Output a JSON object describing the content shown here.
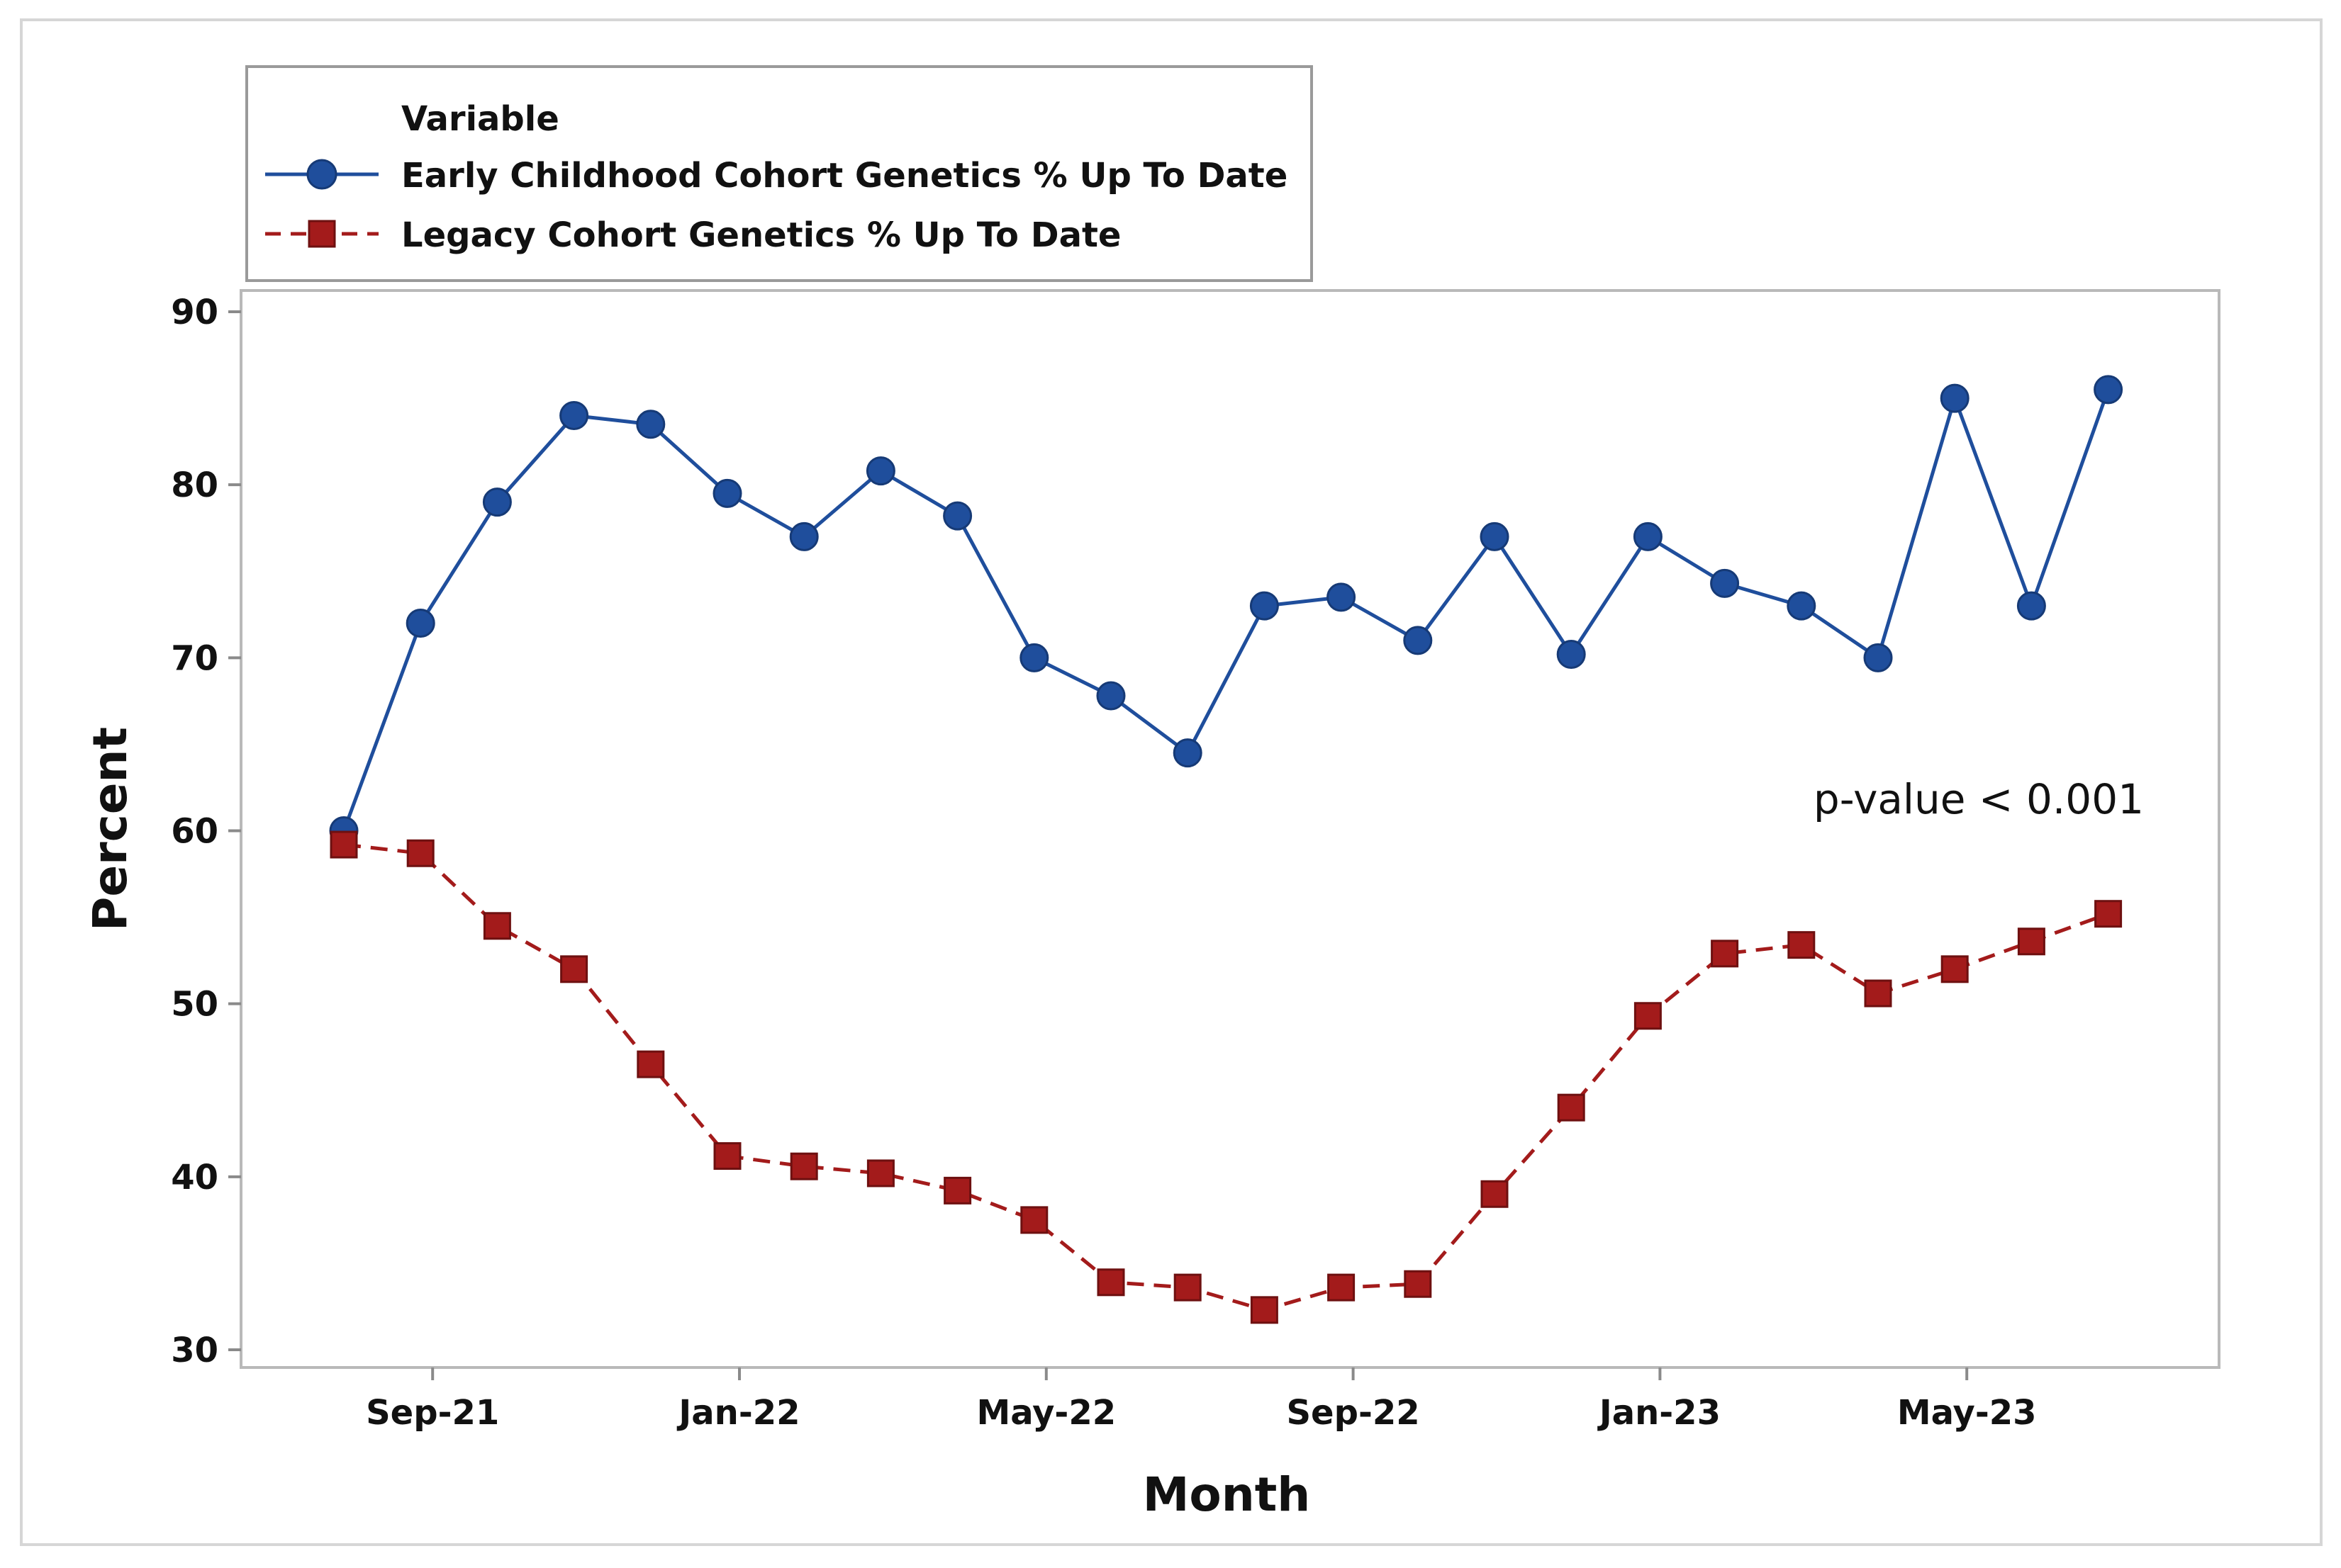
{
  "chart_data": {
    "type": "line",
    "title": "",
    "xlabel": "Month",
    "ylabel": "Percent",
    "ylim": [
      30,
      90
    ],
    "yticks": [
      30,
      40,
      50,
      60,
      70,
      80,
      90
    ],
    "x": [
      "Aug-21",
      "Sep-21",
      "Oct-21",
      "Nov-21",
      "Dec-21",
      "Jan-22",
      "Feb-22",
      "Mar-22",
      "Apr-22",
      "May-22",
      "Jun-22",
      "Jul-22",
      "Aug-22",
      "Sep-22",
      "Oct-22",
      "Nov-22",
      "Dec-22",
      "Jan-23",
      "Feb-23",
      "Mar-23",
      "Apr-23",
      "May-23",
      "Jun-23",
      "Jul-23"
    ],
    "xtick_labels": [
      "Sep-21",
      "Jan-22",
      "May-22",
      "Sep-22",
      "Jan-23",
      "May-23"
    ],
    "xtick_indices": [
      1,
      5,
      9,
      13,
      17,
      21
    ],
    "legend": {
      "title": "Variable",
      "position": "top-left"
    },
    "series": [
      {
        "name": "Early Childhood Cohort Genetics % Up To Date",
        "color": "#1f4e9c",
        "marker": "circle",
        "line_style": "solid",
        "values": [
          60,
          72,
          79,
          84,
          83.5,
          79.5,
          77,
          80.8,
          78.2,
          70,
          67.8,
          64.5,
          73,
          73.5,
          71,
          77,
          70.2,
          77,
          74.3,
          73,
          70,
          85,
          73,
          85.5
        ]
      },
      {
        "name": "Legacy Cohort Genetics % Up To Date",
        "color": "#a31b1b",
        "marker": "square",
        "line_style": "dashed",
        "values": [
          59.2,
          58.7,
          54.5,
          52,
          46.5,
          41.2,
          40.6,
          40.2,
          39.2,
          37.5,
          33.9,
          33.6,
          32.3,
          33.6,
          33.8,
          39,
          44,
          49.3,
          52.9,
          53.4,
          50.6,
          52,
          53.6,
          55.2
        ]
      }
    ],
    "annotations": [
      {
        "text": "p-value < 0.001"
      }
    ]
  }
}
